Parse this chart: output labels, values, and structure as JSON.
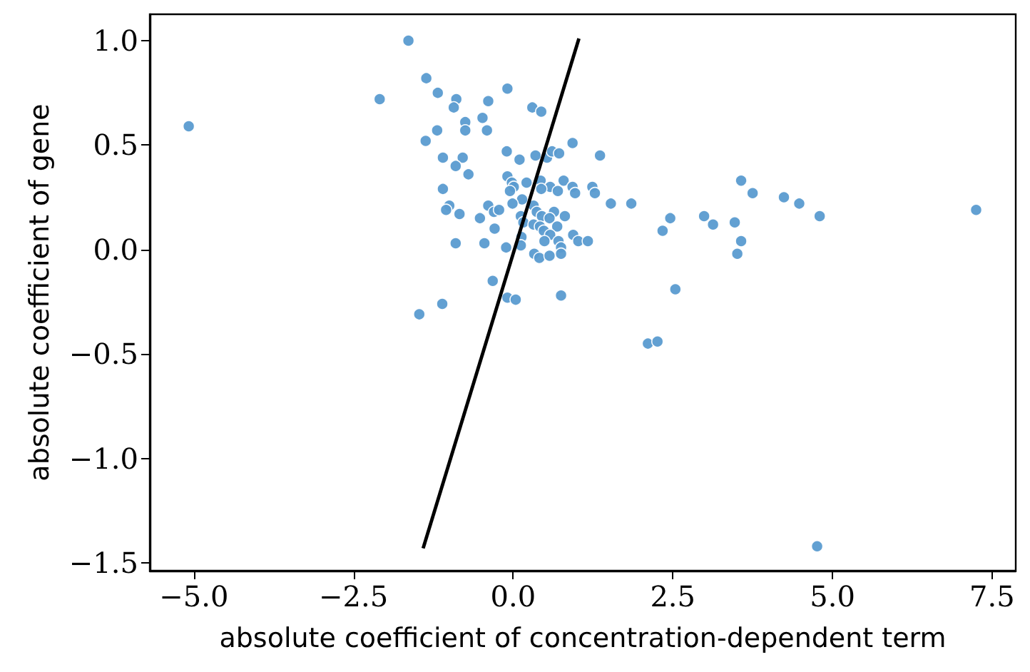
{
  "chart_data": {
    "type": "scatter",
    "xlabel": "absolute coefficient of concentration-dependent term",
    "ylabel": "absolute coefficient of gene",
    "xlim": [
      -5.69,
      7.87
    ],
    "ylim": [
      -1.537,
      1.126
    ],
    "xticks": [
      {
        "value": -5,
        "label": "−5.0"
      },
      {
        "value": -2.5,
        "label": "−2.5"
      },
      {
        "value": 0,
        "label": "0.0"
      },
      {
        "value": 2.5,
        "label": "2.5"
      },
      {
        "value": 5,
        "label": "5.0"
      },
      {
        "value": 7.5,
        "label": "7.5"
      }
    ],
    "yticks": [
      {
        "value": -1.5,
        "label": "−1.5"
      },
      {
        "value": -1,
        "label": "−1.0"
      },
      {
        "value": -0.5,
        "label": "−0.5"
      },
      {
        "value": 0,
        "label": "0.0"
      },
      {
        "value": 0.5,
        "label": "0.5"
      },
      {
        "value": 1,
        "label": "1.0"
      }
    ],
    "grid": false,
    "marker": "circle",
    "series": [
      {
        "color": "#5a9bd0",
        "x": [
          -5.08,
          -1.64,
          -2.09,
          -1.36,
          -1.18,
          -0.89,
          -0.93,
          -0.39,
          -0.09,
          0.3,
          0.44,
          -0.75,
          -0.48,
          -0.75,
          -0.41,
          -1.19,
          -1.37,
          0.93,
          -0.1,
          0.1,
          0.35,
          0.53,
          0.61,
          0.72,
          1.36,
          -1.1,
          -0.79,
          -0.9,
          -0.7,
          -0.09,
          0.21,
          0.43,
          0.79,
          -0.02,
          0.01,
          0.58,
          0.93,
          1.24,
          -1.1,
          -0.05,
          0.44,
          0.7,
          0.97,
          1.28,
          0.14,
          -0.01,
          1.53,
          1.85,
          -1.0,
          -0.39,
          0.32,
          -1.05,
          -0.3,
          -0.22,
          0.37,
          0.64,
          -0.84,
          -0.52,
          0.12,
          0.45,
          0.57,
          0.81,
          2.46,
          2.99,
          3.13,
          3.47,
          3.57,
          3.75,
          4.24,
          4.48,
          4.8,
          7.25,
          -0.29,
          0.16,
          0.32,
          0.42,
          0.69,
          0.48,
          0.58,
          0.94,
          0.13,
          0.49,
          1.02,
          1.17,
          0.71,
          2.34,
          3.57,
          -0.9,
          -0.45,
          -0.11,
          0.12,
          0.75,
          0.33,
          0.41,
          0.57,
          0.75,
          3.51,
          -0.32,
          2.54,
          -0.09,
          0.04,
          0.75,
          -1.11,
          -1.47,
          2.11,
          2.26,
          4.76
        ],
        "values": [
          0.59,
          1.0,
          0.72,
          0.82,
          0.75,
          0.72,
          0.68,
          0.71,
          0.77,
          0.68,
          0.66,
          0.61,
          0.63,
          0.57,
          0.57,
          0.57,
          0.52,
          0.51,
          0.47,
          0.43,
          0.45,
          0.44,
          0.47,
          0.46,
          0.45,
          0.44,
          0.44,
          0.4,
          0.36,
          0.35,
          0.32,
          0.33,
          0.33,
          0.32,
          0.3,
          0.3,
          0.3,
          0.3,
          0.29,
          0.28,
          0.29,
          0.28,
          0.27,
          0.27,
          0.24,
          0.22,
          0.22,
          0.22,
          0.21,
          0.21,
          0.21,
          0.19,
          0.18,
          0.19,
          0.18,
          0.18,
          0.17,
          0.15,
          0.16,
          0.16,
          0.15,
          0.16,
          0.15,
          0.16,
          0.12,
          0.13,
          0.33,
          0.27,
          0.25,
          0.22,
          0.16,
          0.19,
          0.1,
          0.13,
          0.12,
          0.11,
          0.11,
          0.09,
          0.07,
          0.07,
          0.06,
          0.04,
          0.04,
          0.04,
          0.04,
          0.09,
          0.04,
          0.03,
          0.03,
          0.01,
          0.02,
          0.01,
          -0.02,
          -0.04,
          -0.03,
          -0.02,
          -0.02,
          -0.15,
          -0.19,
          -0.23,
          -0.24,
          -0.22,
          -0.26,
          -0.31,
          -0.45,
          -0.44,
          -1.42
        ]
      },
      {
        "type": "line",
        "color": "#000000",
        "marker": "none",
        "line_style": "solid",
        "x": [
          -1.41,
          1.03
        ],
        "values": [
          -1.43,
          1.01
        ]
      }
    ]
  }
}
